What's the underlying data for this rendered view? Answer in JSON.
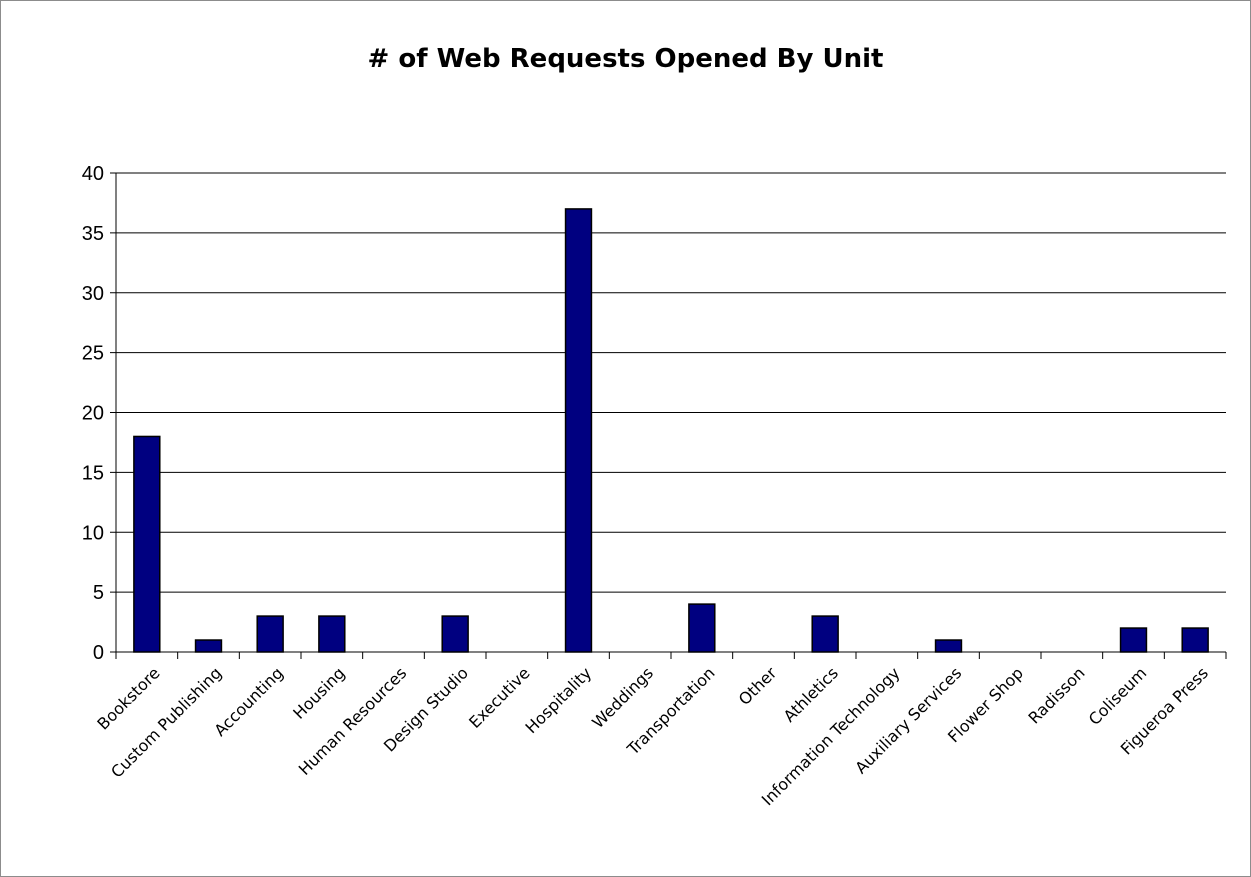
{
  "chart_data": {
    "type": "bar",
    "title": "# of Web Requests Opened By Unit",
    "xlabel": "",
    "ylabel": "",
    "categories": [
      "Bookstore",
      "Custom Publishing",
      "Accounting",
      "Housing",
      "Human Resources",
      "Design Studio",
      "Executive",
      "Hospitality",
      "Weddings",
      "Transportation",
      "Other",
      "Athletics",
      "Information Technology",
      "Auxiliary Services",
      "Flower Shop",
      "Radisson",
      "Coliseum",
      "Figueroa Press"
    ],
    "values": [
      18,
      1,
      3,
      3,
      0,
      3,
      0,
      37,
      0,
      4,
      0,
      3,
      0,
      1,
      0,
      0,
      2,
      2
    ],
    "ylim": [
      0,
      40
    ],
    "yticks": [
      0,
      5,
      10,
      15,
      20,
      25,
      30,
      35,
      40
    ],
    "grid": true,
    "legend": "none",
    "colors": {
      "bar": "#000080",
      "bar_edge": "#000000",
      "grid": "#000000"
    }
  }
}
